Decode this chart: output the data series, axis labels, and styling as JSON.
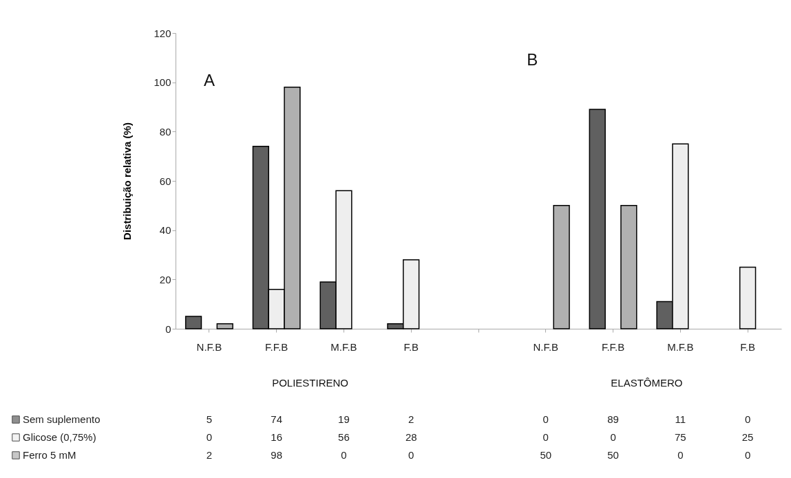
{
  "chart_data": {
    "type": "bar",
    "ylabel": "Distribuição relativa (%)",
    "categories": [
      "N.F.B",
      "F.F.B",
      "M.F.B",
      "F.B",
      null,
      "N.F.B",
      "F.F.B",
      "M.F.B",
      "F.B"
    ],
    "series": [
      {
        "name": "Sem suplemento",
        "color": "#606060",
        "values": [
          5,
          74,
          19,
          2,
          null,
          0,
          89,
          11,
          0
        ]
      },
      {
        "name": "Glicose (0,75%)",
        "color": "#eeeeee",
        "values": [
          0,
          16,
          56,
          28,
          null,
          0,
          0,
          75,
          25
        ]
      },
      {
        "name": "Ferro 5 mM",
        "color": "#b0b0b0",
        "values": [
          2,
          98,
          0,
          0,
          null,
          50,
          50,
          0,
          0
        ]
      }
    ],
    "ylim": [
      0,
      120
    ],
    "yticks": [
      0,
      20,
      40,
      60,
      80,
      100,
      120
    ],
    "annotations": [
      "A",
      "B",
      "POLIESTIRENO",
      "ELASTÔMERO"
    ],
    "data_labels": true,
    "legend": "bottom",
    "grid": false
  }
}
